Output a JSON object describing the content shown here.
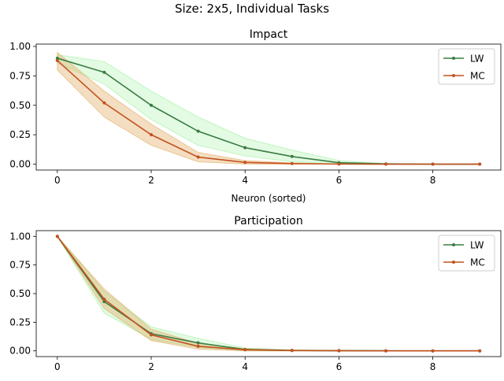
{
  "suptitle": "Size: 2x5, Individual Tasks",
  "colors": {
    "LW": "#3a7d44",
    "LW_band": "#8ff08f",
    "MC": "#c4511f",
    "MC_band": "#e0a050"
  },
  "chart_data": [
    {
      "type": "line",
      "title": "Impact",
      "xlabel": "Neuron (sorted)",
      "ylabel": "",
      "x": [
        0,
        1,
        2,
        3,
        4,
        5,
        6,
        7,
        8,
        9
      ],
      "xlim": [
        -0.45,
        9.45
      ],
      "ylim": [
        -0.05,
        1.02
      ],
      "xticks": [
        0,
        2,
        4,
        6,
        8
      ],
      "xtick_labels": [
        "0",
        "2",
        "4",
        "6",
        "8"
      ],
      "yticks": [
        0.0,
        0.25,
        0.5,
        0.75,
        1.0
      ],
      "ytick_labels": [
        "0.00",
        "0.25",
        "0.50",
        "0.75",
        "1.00"
      ],
      "legend": "top-right",
      "grid": false,
      "series": [
        {
          "name": "LW",
          "values": [
            0.9,
            0.78,
            0.5,
            0.28,
            0.14,
            0.065,
            0.012,
            0.002,
            0.0,
            0.0
          ],
          "lower": [
            0.86,
            0.68,
            0.38,
            0.16,
            0.07,
            0.02,
            0.0,
            0.0,
            0.0,
            0.0
          ],
          "upper": [
            0.93,
            0.87,
            0.62,
            0.4,
            0.22,
            0.12,
            0.03,
            0.005,
            0.0,
            0.0
          ]
        },
        {
          "name": "MC",
          "values": [
            0.88,
            0.52,
            0.25,
            0.06,
            0.015,
            0.005,
            0.001,
            0.0,
            0.0,
            0.0
          ],
          "lower": [
            0.8,
            0.4,
            0.16,
            0.02,
            0.0,
            0.0,
            0.0,
            0.0,
            0.0,
            0.0
          ],
          "upper": [
            0.95,
            0.62,
            0.34,
            0.1,
            0.03,
            0.01,
            0.0,
            0.0,
            0.0,
            0.0
          ]
        }
      ]
    },
    {
      "type": "line",
      "title": "Participation",
      "xlabel": "",
      "ylabel": "",
      "x": [
        0,
        1,
        2,
        3,
        4,
        5,
        6,
        7,
        8,
        9
      ],
      "xlim": [
        -0.45,
        9.45
      ],
      "ylim": [
        -0.05,
        1.05
      ],
      "xticks": [
        0,
        2,
        4,
        6,
        8
      ],
      "xtick_labels": [
        "0",
        "2",
        "4",
        "6",
        "8"
      ],
      "yticks": [
        0.0,
        0.25,
        0.5,
        0.75,
        1.0
      ],
      "ytick_labels": [
        "0.00",
        "0.25",
        "0.50",
        "0.75",
        "1.00"
      ],
      "legend": "top-right",
      "grid": false,
      "series": [
        {
          "name": "LW",
          "values": [
            1.0,
            0.43,
            0.15,
            0.07,
            0.012,
            0.004,
            0.002,
            0.001,
            0.0,
            0.0
          ],
          "lower": [
            1.0,
            0.33,
            0.1,
            0.03,
            0.0,
            0.0,
            0.0,
            0.0,
            0.0,
            0.0
          ],
          "upper": [
            1.0,
            0.52,
            0.21,
            0.11,
            0.025,
            0.008,
            0.004,
            0.002,
            0.0,
            0.0
          ]
        },
        {
          "name": "MC",
          "values": [
            1.0,
            0.45,
            0.14,
            0.04,
            0.01,
            0.003,
            0.001,
            0.0,
            0.0,
            0.0
          ],
          "lower": [
            1.0,
            0.37,
            0.09,
            0.015,
            0.0,
            0.0,
            0.0,
            0.0,
            0.0,
            0.0
          ],
          "upper": [
            1.0,
            0.54,
            0.19,
            0.065,
            0.02,
            0.006,
            0.002,
            0.0,
            0.0,
            0.0
          ]
        }
      ]
    }
  ]
}
